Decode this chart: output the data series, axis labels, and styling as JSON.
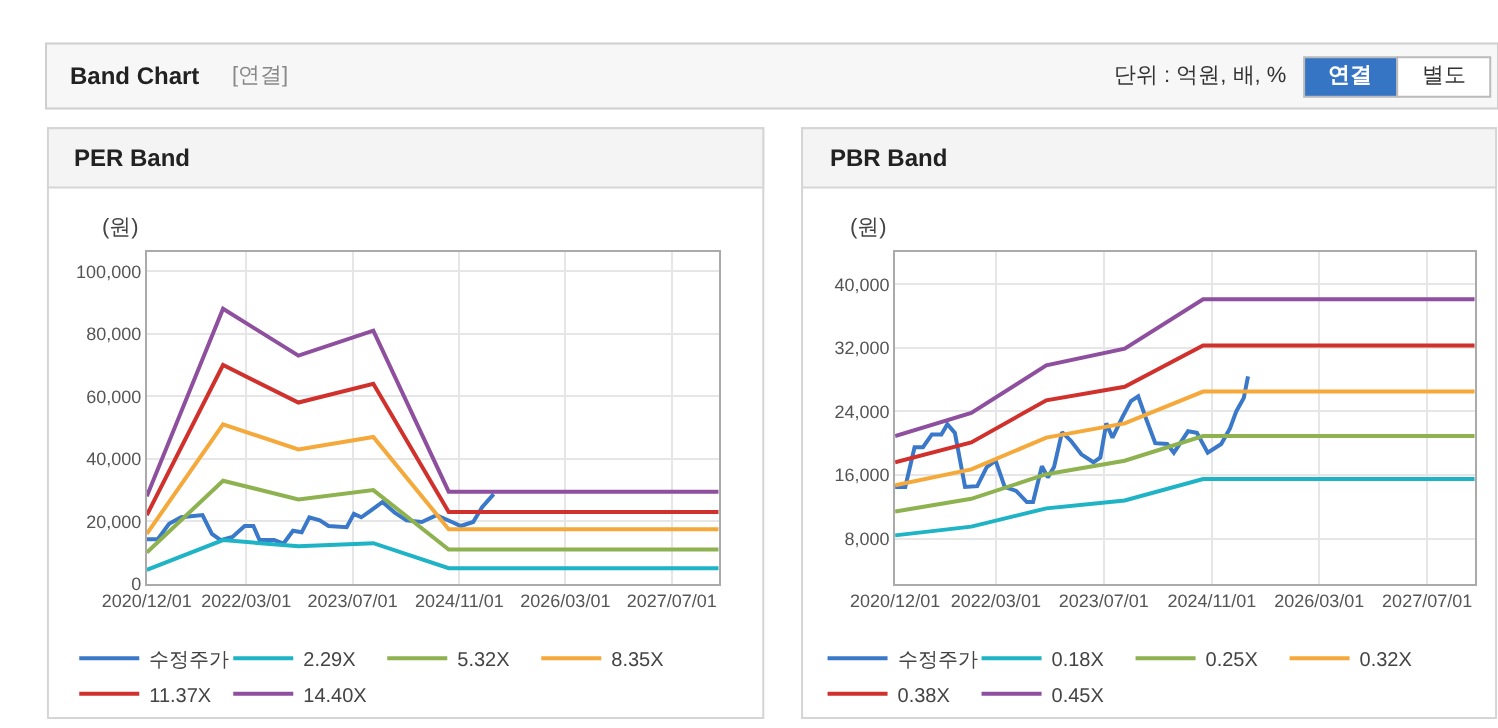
{
  "chart_data": [
    {
      "type": "other",
      "title": "Band Chart",
      "annotations": [
        "[연결]",
        "단위 : 억원, 배, %",
        "연결",
        "별도"
      ]
    },
    {
      "type": "line",
      "title": "PER Band",
      "ylabel": "(원)",
      "grid": true,
      "legend": "bottom",
      "xlim": [
        "2020-12-01",
        "2028-02-01"
      ],
      "xticks": [
        {
          "value": "2020-12-01",
          "label": "2020/12/01"
        },
        {
          "value": "2022-03-01",
          "label": "2022/03/01"
        },
        {
          "value": "2023-07-01",
          "label": "2023/07/01"
        },
        {
          "value": "2024-11-01",
          "label": "2024/11/01"
        },
        {
          "value": "2026-03-01",
          "label": "2026/03/01"
        },
        {
          "value": "2027-07-01",
          "label": "2027/07/01"
        }
      ],
      "ylim": [
        0,
        106000
      ],
      "yticks": [
        0,
        {
          "value": 20000,
          "label": "20,000"
        },
        {
          "value": 40000,
          "label": "40,000"
        },
        {
          "value": 60000,
          "label": "60,000"
        },
        {
          "value": 80000,
          "label": "80,000"
        },
        {
          "value": 100000,
          "label": "100,000"
        }
      ],
      "series": [
        {
          "name": "수정주가",
          "color": "#3a78c9",
          "x": [
            "2020-12-01",
            "2021-01-20",
            "2021-03-13",
            "2021-05-07",
            "2021-08-13",
            "2021-09-25",
            "2021-11-04",
            "2021-12-28",
            "2022-02-22",
            "2022-04-03",
            "2022-05-01",
            "2022-07-07",
            "2022-08-19",
            "2022-10-01",
            "2022-11-10",
            "2022-12-15",
            "2023-02-01",
            "2023-03-13",
            "2023-06-04",
            "2023-07-07",
            "2023-08-10",
            "2023-09-22",
            "2023-11-15",
            "2024-01-10",
            "2024-03-04",
            "2024-05-13",
            "2024-07-19",
            "2024-09-28",
            "2024-11-07",
            "2025-01-03",
            "2025-02-13",
            "2025-04-07"
          ],
          "values": [
            14300,
            14300,
            19200,
            21300,
            22000,
            16000,
            14000,
            15000,
            18500,
            18500,
            14000,
            14000,
            12900,
            17000,
            16500,
            21300,
            20300,
            18500,
            18100,
            22400,
            21300,
            23400,
            26200,
            22800,
            20300,
            19800,
            22000,
            19800,
            18500,
            19800,
            24500,
            28700
          ]
        },
        {
          "name": "2.29X",
          "color": "#1fb3c6",
          "x": [
            "2020-12-01",
            "2021-11-15",
            "2022-10-26",
            "2023-10-04",
            "2024-09-13",
            "2028-02-01"
          ],
          "values": [
            4500,
            14000,
            12000,
            13000,
            5000,
            5000
          ]
        },
        {
          "name": "5.32X",
          "color": "#8db24f",
          "x": [
            "2020-12-01",
            "2021-11-15",
            "2022-10-26",
            "2023-10-04",
            "2024-09-13",
            "2028-02-01"
          ],
          "values": [
            10000,
            33000,
            27000,
            30000,
            11000,
            11000
          ]
        },
        {
          "name": "8.35X",
          "color": "#f4a93a",
          "x": [
            "2020-12-01",
            "2021-11-15",
            "2022-10-26",
            "2023-10-04",
            "2024-09-13",
            "2028-02-01"
          ],
          "values": [
            16000,
            51000,
            43000,
            47000,
            17500,
            17500
          ]
        },
        {
          "name": "11.37X",
          "color": "#d0312d",
          "x": [
            "2020-12-01",
            "2021-11-15",
            "2022-10-26",
            "2023-10-04",
            "2024-09-13",
            "2028-02-01"
          ],
          "values": [
            22000,
            70000,
            58000,
            64000,
            23000,
            23000
          ]
        },
        {
          "name": "14.40X",
          "color": "#8e4f9e",
          "x": [
            "2020-12-01",
            "2021-11-15",
            "2022-10-26",
            "2023-10-04",
            "2024-09-13",
            "2028-02-01"
          ],
          "values": [
            28000,
            88000,
            73000,
            81000,
            29500,
            29500
          ]
        }
      ]
    },
    {
      "type": "line",
      "title": "PBR Band",
      "ylabel": "(원)",
      "grid": true,
      "legend": "bottom",
      "xlim": [
        "2020-12-01",
        "2028-02-01"
      ],
      "xticks": [
        {
          "value": "2020-12-01",
          "label": "2020/12/01"
        },
        {
          "value": "2022-03-01",
          "label": "2022/03/01"
        },
        {
          "value": "2023-07-01",
          "label": "2023/07/01"
        },
        {
          "value": "2024-11-01",
          "label": "2024/11/01"
        },
        {
          "value": "2026-03-01",
          "label": "2026/03/01"
        },
        {
          "value": "2027-07-01",
          "label": "2027/07/01"
        }
      ],
      "ylim": [
        2300,
        44000
      ],
      "yticks": [
        {
          "value": 8000,
          "label": "8,000"
        },
        {
          "value": 16000,
          "label": "16,000"
        },
        {
          "value": 24000,
          "label": "24,000"
        },
        {
          "value": 32000,
          "label": "32,000"
        },
        {
          "value": 40000,
          "label": "40,000"
        }
      ],
      "series": [
        {
          "name": "수정주가",
          "color": "#3a78c9",
          "x": [
            "2020-12-01",
            "2021-01-16",
            "2021-02-27",
            "2021-04-06",
            "2021-05-16",
            "2021-06-28",
            "2021-07-25",
            "2021-08-28",
            "2021-10-13",
            "2021-12-07",
            "2022-01-19",
            "2022-02-28",
            "2022-04-10",
            "2022-06-01",
            "2022-07-19",
            "2022-08-16",
            "2022-09-25",
            "2022-10-22",
            "2022-11-19",
            "2022-12-25",
            "2023-02-03",
            "2023-03-22",
            "2023-05-16",
            "2023-06-16",
            "2023-07-13",
            "2023-08-10",
            "2023-09-22",
            "2023-11-01",
            "2023-12-04",
            "2024-01-07",
            "2024-02-19",
            "2024-04-13",
            "2024-05-13",
            "2024-07-16",
            "2024-08-25",
            "2024-10-13",
            "2024-12-13",
            "2025-01-22",
            "2025-02-19",
            "2025-03-25",
            "2025-04-13"
          ],
          "values": [
            14500,
            14500,
            19500,
            19500,
            21100,
            21100,
            22400,
            21300,
            14500,
            14600,
            17000,
            17800,
            14500,
            14000,
            12600,
            12600,
            17100,
            15700,
            17000,
            21400,
            20300,
            18600,
            17600,
            18200,
            22500,
            20700,
            23200,
            25300,
            25900,
            23200,
            20000,
            19900,
            18800,
            21500,
            21300,
            18800,
            19900,
            21900,
            24000,
            25700,
            28400
          ]
        },
        {
          "name": "0.18X",
          "color": "#1fb3c6",
          "x": [
            "2020-12-01",
            "2021-11-10",
            "2022-10-15",
            "2023-10-04",
            "2024-09-22",
            "2028-02-01"
          ],
          "values": [
            8400,
            9500,
            11800,
            12800,
            15500,
            15500
          ]
        },
        {
          "name": "0.25X",
          "color": "#8db24f",
          "x": [
            "2020-12-01",
            "2021-11-10",
            "2022-10-15",
            "2023-10-04",
            "2024-09-22",
            "2028-02-01"
          ],
          "values": [
            11400,
            13000,
            16100,
            17800,
            20900,
            20900
          ]
        },
        {
          "name": "0.32X",
          "color": "#f4a93a",
          "x": [
            "2020-12-01",
            "2021-11-10",
            "2022-10-15",
            "2023-10-04",
            "2024-09-22",
            "2028-02-01"
          ],
          "values": [
            14700,
            16700,
            20700,
            22500,
            26500,
            26500
          ]
        },
        {
          "name": "0.38X",
          "color": "#d0312d",
          "x": [
            "2020-12-01",
            "2021-11-10",
            "2022-10-15",
            "2023-10-04",
            "2024-09-22",
            "2028-02-01"
          ],
          "values": [
            17600,
            20100,
            25400,
            27100,
            32300,
            32300
          ]
        },
        {
          "name": "0.45X",
          "color": "#8e4f9e",
          "x": [
            "2020-12-01",
            "2021-11-10",
            "2022-10-15",
            "2023-10-04",
            "2024-09-22",
            "2028-02-01"
          ],
          "values": [
            20900,
            23800,
            29800,
            31900,
            38100,
            38100
          ]
        }
      ]
    }
  ]
}
